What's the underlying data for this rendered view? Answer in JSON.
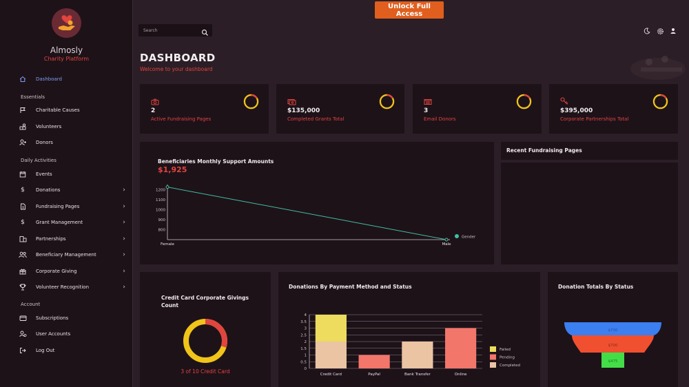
{
  "brand": {
    "name": "Almosly",
    "subtitle": "Charity Platform"
  },
  "topbar": {
    "unlock_label": "Unlock Full Access",
    "search_placeholder": "Search"
  },
  "sidebar": {
    "items": [
      {
        "label": "Dashboard",
        "icon": "home-icon",
        "active": true
      },
      {
        "section": "Essentials"
      },
      {
        "label": "Charitable Causes",
        "icon": "flag-icon"
      },
      {
        "label": "Volunteers",
        "icon": "volunteers-icon"
      },
      {
        "label": "Donors",
        "icon": "donor-icon"
      },
      {
        "section": "Daily Activities"
      },
      {
        "label": "Events",
        "icon": "calendar-icon"
      },
      {
        "label": "Donations",
        "icon": "dollar-icon",
        "chevron": true
      },
      {
        "label": "Fundraising Pages",
        "icon": "file-icon",
        "chevron": true
      },
      {
        "label": "Grant Management",
        "icon": "dollar-icon",
        "chevron": true
      },
      {
        "label": "Partnerships",
        "icon": "building-icon",
        "chevron": true
      },
      {
        "label": "Beneficiary Management",
        "icon": "people-icon",
        "chevron": true
      },
      {
        "label": "Corporate Giving",
        "icon": "gift-icon",
        "chevron": true
      },
      {
        "label": "Volunteer Recognition",
        "icon": "trophy-icon",
        "chevron": true
      },
      {
        "section": "Account"
      },
      {
        "label": "Subscriptions",
        "icon": "card-icon"
      },
      {
        "label": "User Accounts",
        "icon": "user-accounts-icon"
      },
      {
        "label": "Log Out",
        "icon": "logout-icon"
      }
    ]
  },
  "header": {
    "title": "DASHBOARD",
    "subtitle": "Welcome to your dashboard"
  },
  "stats": [
    {
      "value": "2",
      "label": "Active Fundraising Pages",
      "icon": "camera-icon"
    },
    {
      "value": "$135,000",
      "label": "Completed Grants Total",
      "icon": "cash-icon"
    },
    {
      "value": "3",
      "label": "Email Donors",
      "icon": "email-icon"
    },
    {
      "value": "$395,000",
      "label": "Corporate Partnerships Total",
      "icon": "key-icon"
    }
  ],
  "line_card": {
    "title": "Beneficiaries Monthly Support Amounts",
    "amount": "$1,925"
  },
  "recent_card": {
    "title": "Recent Fundraising Pages"
  },
  "donut_card": {
    "title_line1": "Credit Card Corporate Givings",
    "title_line2": "Count",
    "caption": "3 of 10 Credit Card"
  },
  "bar_card": {
    "title": "Donations By Payment Method and Status"
  },
  "funnel_card": {
    "title": "Donation Totals By Status"
  },
  "colors": {
    "accent_red": "#e0453f",
    "ring_yellow": "#f0c419",
    "ring_red": "#e0453f",
    "line": "#3fc0a0",
    "failed": "#eddc5e",
    "pending": "#f3766a",
    "completed": "#ebc4a4"
  },
  "chart_data": [
    {
      "type": "line",
      "title": "Beneficiaries Monthly Support Amounts",
      "categories": [
        "Female",
        "Male"
      ],
      "series": [
        {
          "name": "Gender",
          "values": [
            1225,
            700
          ]
        }
      ],
      "yticks": [
        800,
        900,
        1000,
        1100,
        1200
      ],
      "ylim": [
        700,
        1250
      ]
    },
    {
      "type": "bar",
      "title": "Donations By Payment Method and Status",
      "categories": [
        "Credit Card",
        "PayPal",
        "Bank Transfer",
        "Online"
      ],
      "series": [
        {
          "name": "Completed",
          "values": [
            2,
            0,
            2,
            0
          ]
        },
        {
          "name": "Pending",
          "values": [
            0,
            1,
            0,
            3
          ]
        },
        {
          "name": "Failed",
          "values": [
            2,
            0,
            0,
            0
          ]
        }
      ],
      "yticks": [
        "0",
        "0.5",
        "1",
        "1.5",
        "2",
        "2.5",
        "3",
        "3.5",
        "4"
      ],
      "ylim": [
        0,
        4
      ],
      "legend": [
        "Failed",
        "Pending",
        "Completed"
      ]
    },
    {
      "type": "pie",
      "title": "Credit Card Corporate Givings Count",
      "values": [
        3,
        7
      ]
    },
    {
      "type": "funnel",
      "title": "Donation Totals By Status",
      "labels": [
        "$730",
        "$700",
        "$475"
      ],
      "values": [
        730,
        700,
        475
      ]
    }
  ]
}
